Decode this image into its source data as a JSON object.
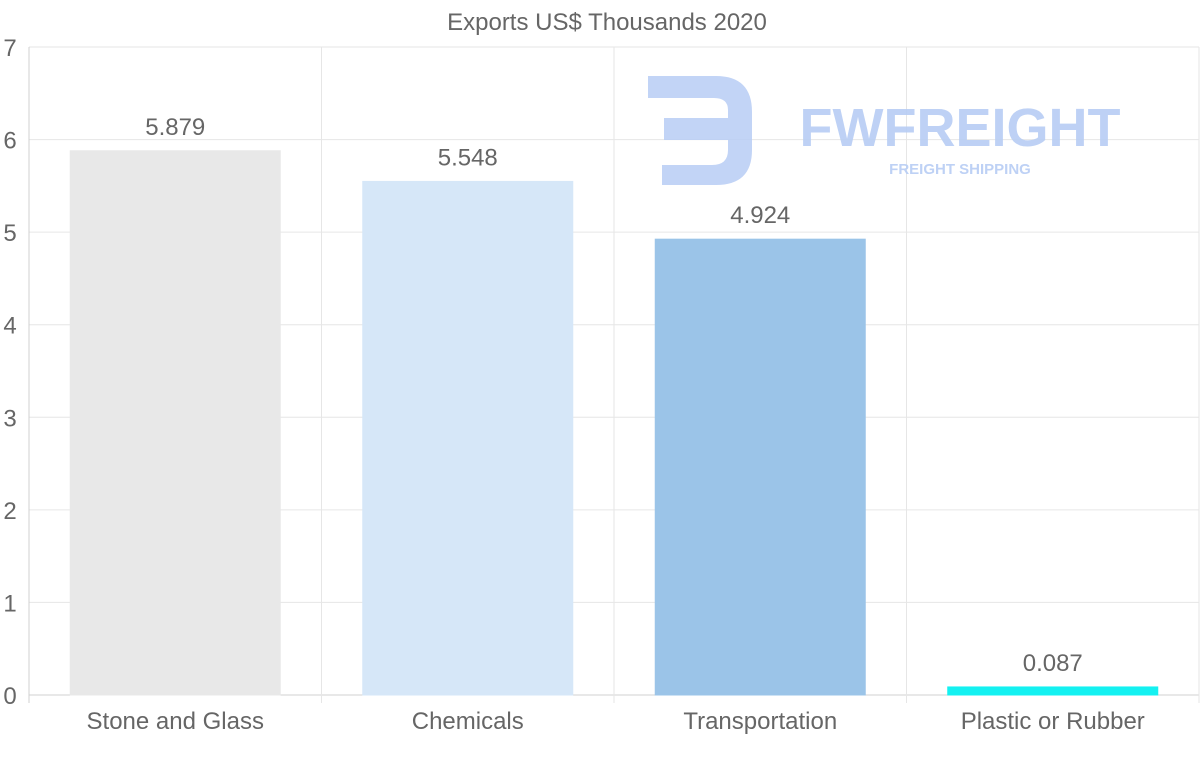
{
  "chart_data": {
    "type": "bar",
    "title": "Exports US$ Thousands 2020",
    "xlabel": "",
    "ylabel": "",
    "categories": [
      "Stone and Glass",
      "Chemicals",
      "Transportation",
      "Plastic or Rubber"
    ],
    "values": [
      5.879,
      5.548,
      4.924,
      0.087
    ],
    "data_labels": [
      "5.879",
      "5.548",
      "4.924",
      "0.087"
    ],
    "bar_colors": [
      "#e8e8e8",
      "#d6e7f8",
      "#9bc4e8",
      "#14f1f1"
    ],
    "ylim": [
      0,
      7
    ],
    "yticks": [
      0,
      1,
      2,
      3,
      4,
      5,
      6,
      7
    ],
    "ytick_labels": [
      "0",
      "1",
      "2",
      "3",
      "4",
      "5",
      "6",
      "7"
    ],
    "grid": true,
    "legend": "none"
  },
  "watermark": {
    "brand": "FWFREIGHT",
    "tagline": "FREIGHT SHIPPING",
    "color": "#b7cdf4"
  },
  "colors": {
    "text": "#666666",
    "grid": "#e6e6e6",
    "axis": "#d0d0d0"
  }
}
